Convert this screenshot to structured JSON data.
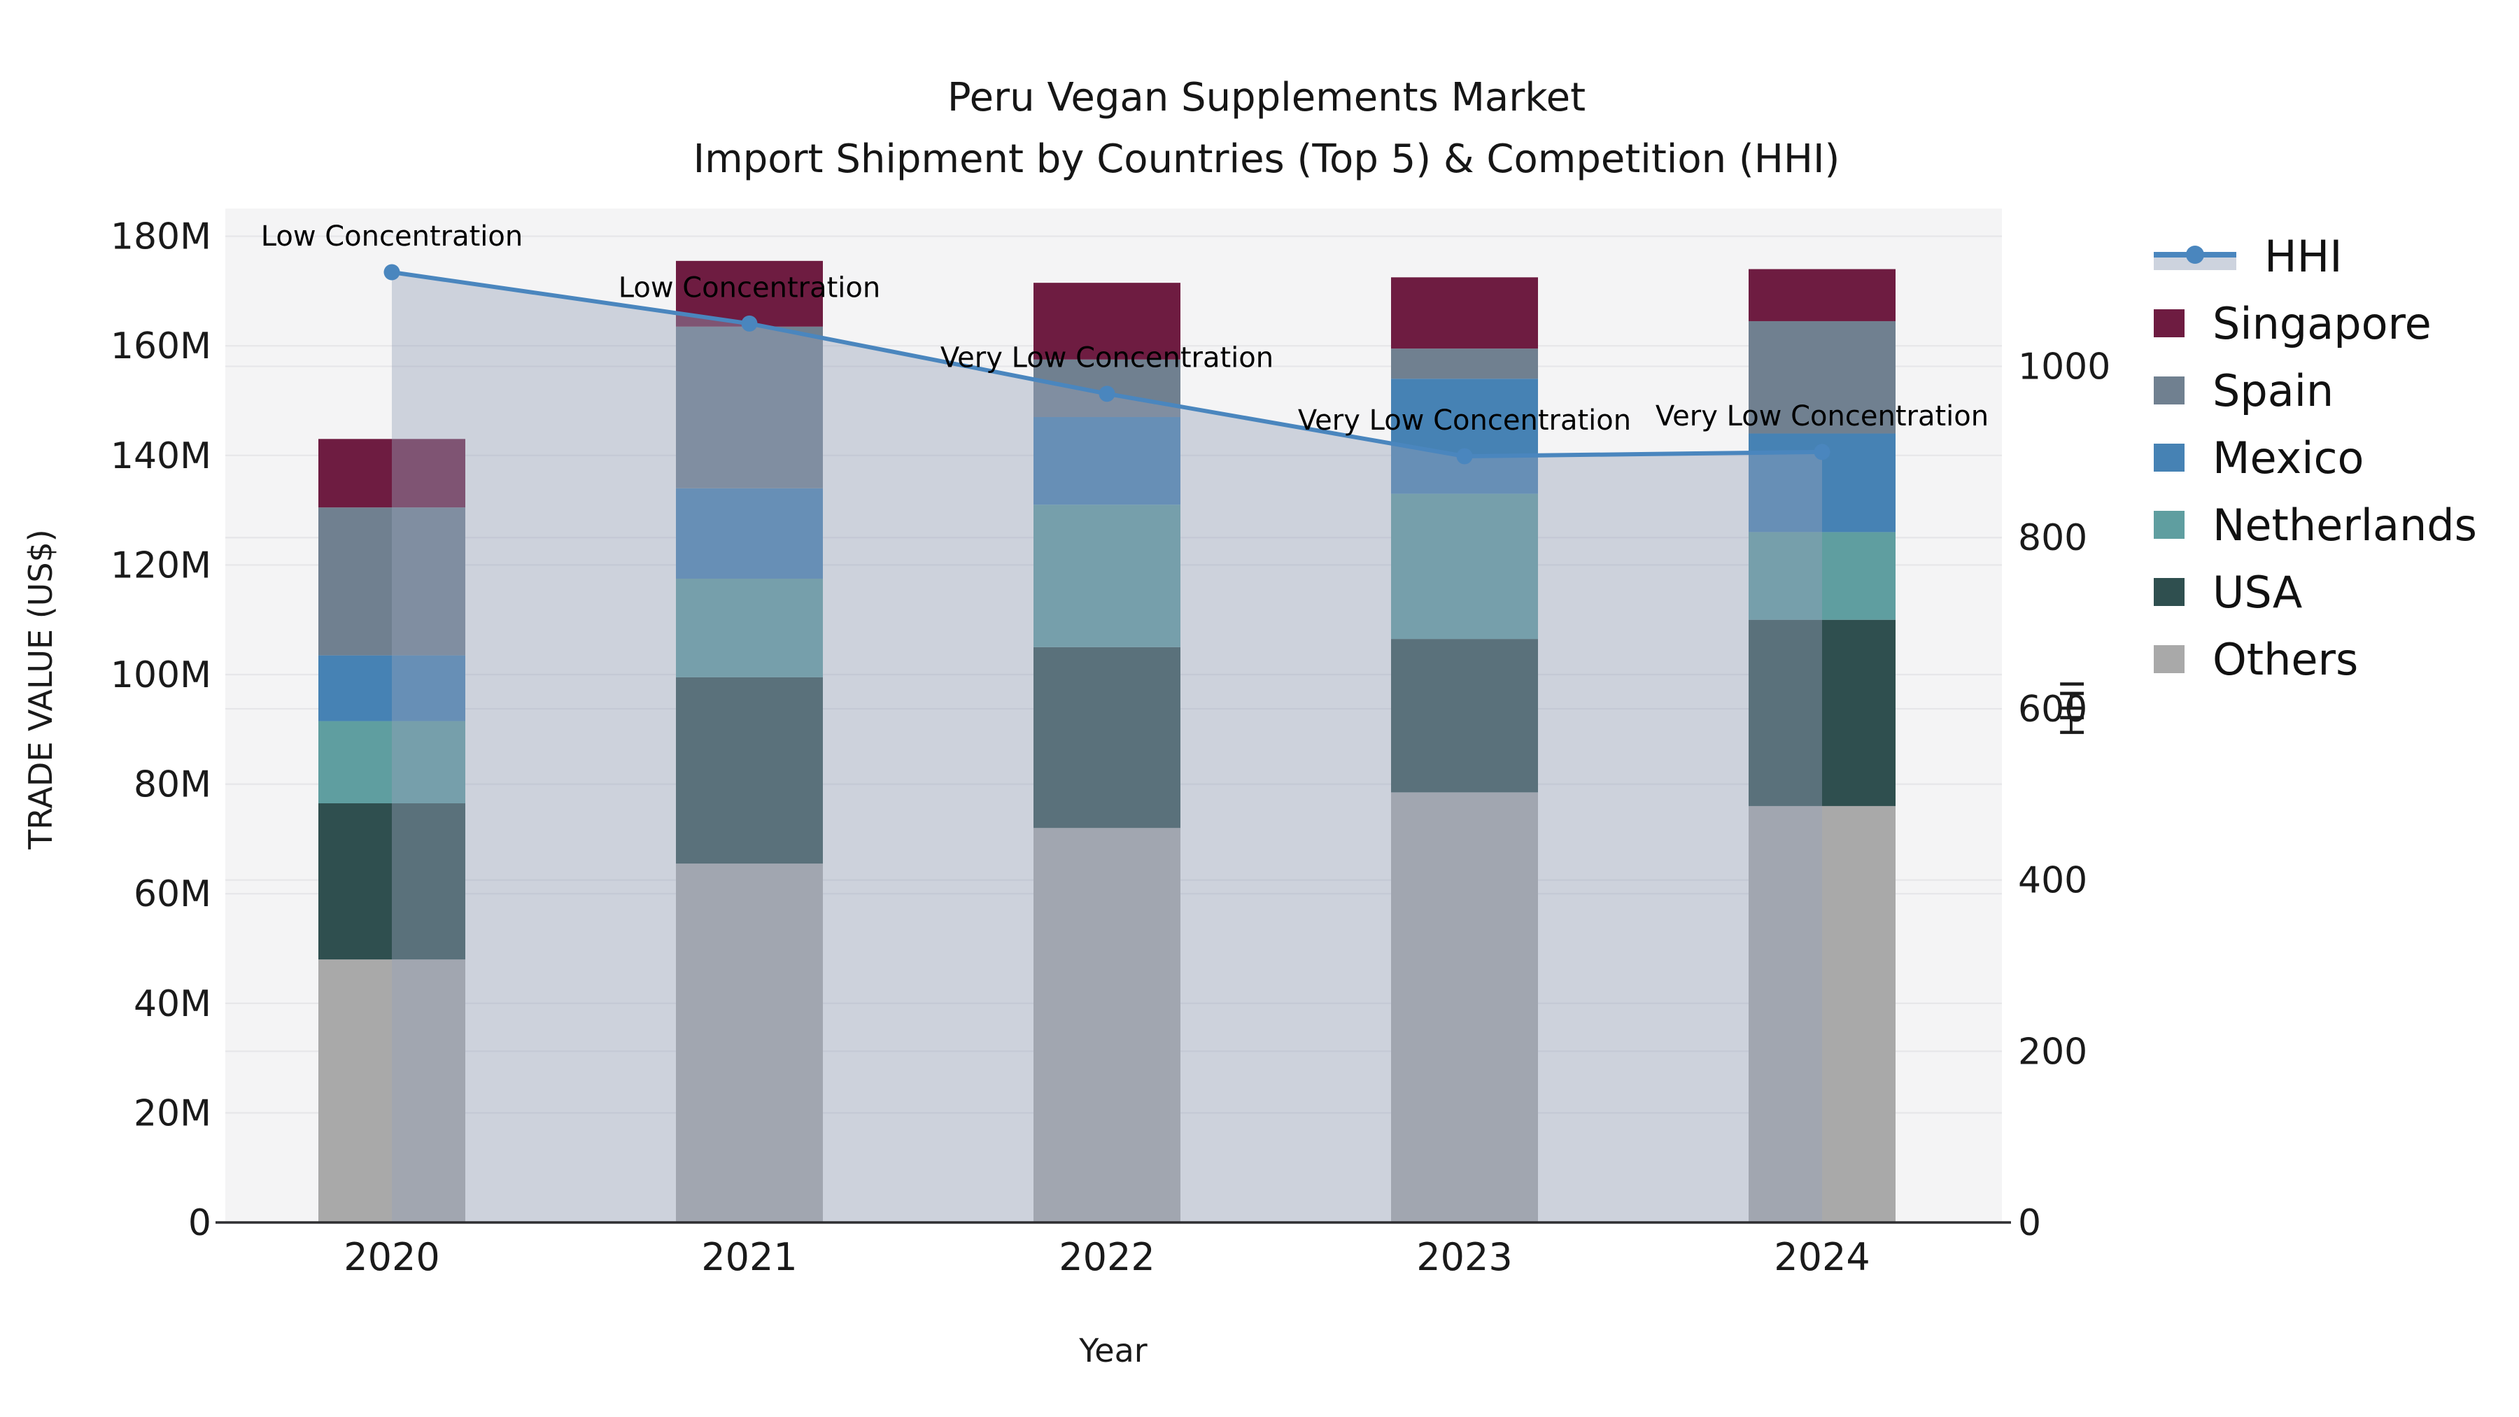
{
  "title": {
    "line1": "Peru Vegan Supplements Market",
    "line2": "Import Shipment by Countries (Top 5) & Competition (HHI)"
  },
  "axes": {
    "x_label": "Year",
    "y_left_label": "TRADE VALUE (US$)",
    "y_right_label": "HHI",
    "y_left_ticks": [
      {
        "value": 0,
        "label": "0"
      },
      {
        "value": 20,
        "label": "20M"
      },
      {
        "value": 40,
        "label": "40M"
      },
      {
        "value": 60,
        "label": "60M"
      },
      {
        "value": 80,
        "label": "80M"
      },
      {
        "value": 100,
        "label": "100M"
      },
      {
        "value": 120,
        "label": "120M"
      },
      {
        "value": 140,
        "label": "140M"
      },
      {
        "value": 160,
        "label": "160M"
      },
      {
        "value": 180,
        "label": "180M"
      }
    ],
    "y_right_ticks": [
      {
        "value": 0,
        "label": "0"
      },
      {
        "value": 200,
        "label": "200"
      },
      {
        "value": 400,
        "label": "400"
      },
      {
        "value": 600,
        "label": "600"
      },
      {
        "value": 800,
        "label": "800"
      },
      {
        "value": 1000,
        "label": "1000"
      }
    ]
  },
  "chart_data": {
    "type": "stacked-bar + line (dual axis)",
    "categories": [
      "2020",
      "2021",
      "2022",
      "2023",
      "2024"
    ],
    "value_unit": "Trade value, millions US$ (left axis); HHI index (right axis)",
    "stack_order_bottom_to_top": [
      "Others",
      "USA",
      "Netherlands",
      "Mexico",
      "Spain",
      "Singapore"
    ],
    "series": [
      {
        "name": "Singapore",
        "color": "#6E1C41",
        "values": [
          12.5,
          12,
          14,
          13,
          9.5
        ]
      },
      {
        "name": "Spain",
        "color": "#708090",
        "values": [
          27,
          29.5,
          10.5,
          5.5,
          20.5
        ]
      },
      {
        "name": "Mexico",
        "color": "#4682B4",
        "values": [
          12,
          16.5,
          16,
          21,
          18
        ]
      },
      {
        "name": "Netherlands",
        "color": "#5F9EA0",
        "values": [
          15,
          18,
          26,
          26.5,
          16
        ]
      },
      {
        "name": "USA",
        "color": "#2F4F4F",
        "values": [
          28.5,
          34,
          33,
          28,
          34
        ]
      },
      {
        "name": "Others",
        "color": "#A9A9A9",
        "values": [
          48,
          65.5,
          72,
          78.5,
          76
        ]
      }
    ],
    "line_series": {
      "name": "HHI",
      "axis": "right",
      "color": "#4A86BE",
      "area_fill_color": "rgba(150,163,185,0.42)",
      "values": [
        1110,
        1050,
        968,
        895,
        900
      ]
    },
    "annotations": [
      {
        "category": "2020",
        "text": "Low Concentration"
      },
      {
        "category": "2021",
        "text": "Low Concentration"
      },
      {
        "category": "2022",
        "text": "Very Low Concentration"
      },
      {
        "category": "2023",
        "text": "Very Low Concentration"
      },
      {
        "category": "2024",
        "text": "Very Low Concentration"
      }
    ],
    "ylim_left": [
      0,
      185
    ],
    "ylim_right": [
      0,
      1185
    ],
    "grid": true,
    "legend_position": "right"
  },
  "legend": {
    "items": [
      {
        "label": "HHI",
        "type": "line"
      },
      {
        "label": "Singapore",
        "type": "swatch",
        "color": "#6E1C41"
      },
      {
        "label": "Spain",
        "type": "swatch",
        "color": "#708090"
      },
      {
        "label": "Mexico",
        "type": "swatch",
        "color": "#4682B4"
      },
      {
        "label": "Netherlands",
        "type": "swatch",
        "color": "#5F9EA0"
      },
      {
        "label": "USA",
        "type": "swatch",
        "color": "#2F4F4F"
      },
      {
        "label": "Others",
        "type": "swatch",
        "color": "#A9A9A9"
      }
    ]
  },
  "colors": {
    "plot_background": "#F4F4F5",
    "grid_line": "#E6E6E9",
    "axis_line": "#2E2E31",
    "text": "#1A1A1A",
    "hhi_line": "#4A86BE",
    "hhi_area": "rgba(150,163,185,0.42)",
    "legend_hhi_band": "#CDD3DE"
  }
}
